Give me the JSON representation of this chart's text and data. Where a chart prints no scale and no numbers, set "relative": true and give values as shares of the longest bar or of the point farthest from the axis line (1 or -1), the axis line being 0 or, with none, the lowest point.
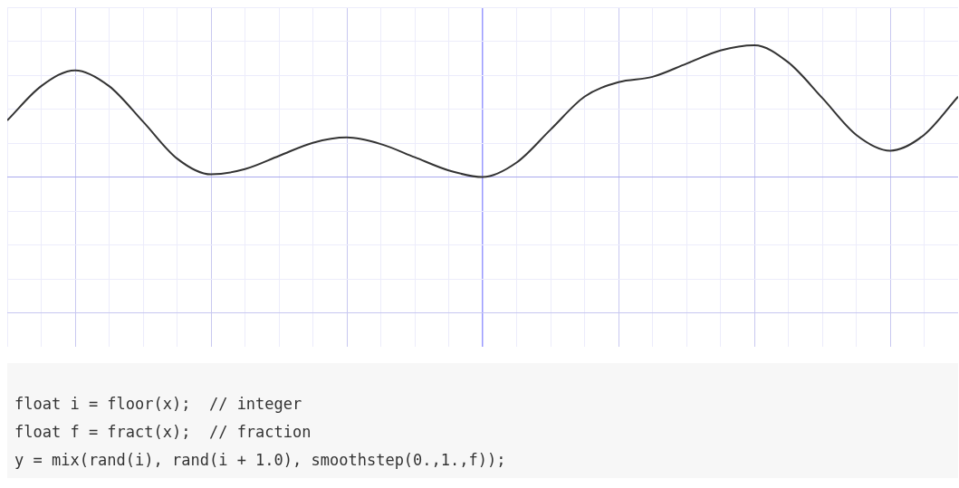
{
  "chart_data": {
    "type": "line",
    "relative": true,
    "grid": true,
    "categories": [
      null,
      null,
      null,
      null,
      null,
      null,
      null,
      null,
      null,
      null,
      null,
      null,
      null,
      null,
      null,
      null,
      null,
      null,
      null,
      null,
      null,
      null,
      null,
      null,
      null,
      null,
      null,
      null,
      null
    ],
    "series": [
      {
        "color": "#333333",
        "values": [
          0.43,
          0.69,
          0.81,
          0.69,
          0.42,
          0.14,
          0.02,
          0.06,
          0.16,
          0.26,
          0.3,
          0.25,
          0.15,
          0.05,
          0,
          0.11,
          0.36,
          0.61,
          0.72,
          0.76,
          0.86,
          0.96,
          1,
          0.87,
          0.6,
          0.32,
          0.2,
          0.32,
          0.61
        ]
      }
    ],
    "annotations": [
      "float i = floor(x);  // integer",
      "float f = fract(x);  // fraction",
      "y = mix(rand(i), rand(i + 1.0), smoothstep(0.,1.,f));"
    ]
  }
}
